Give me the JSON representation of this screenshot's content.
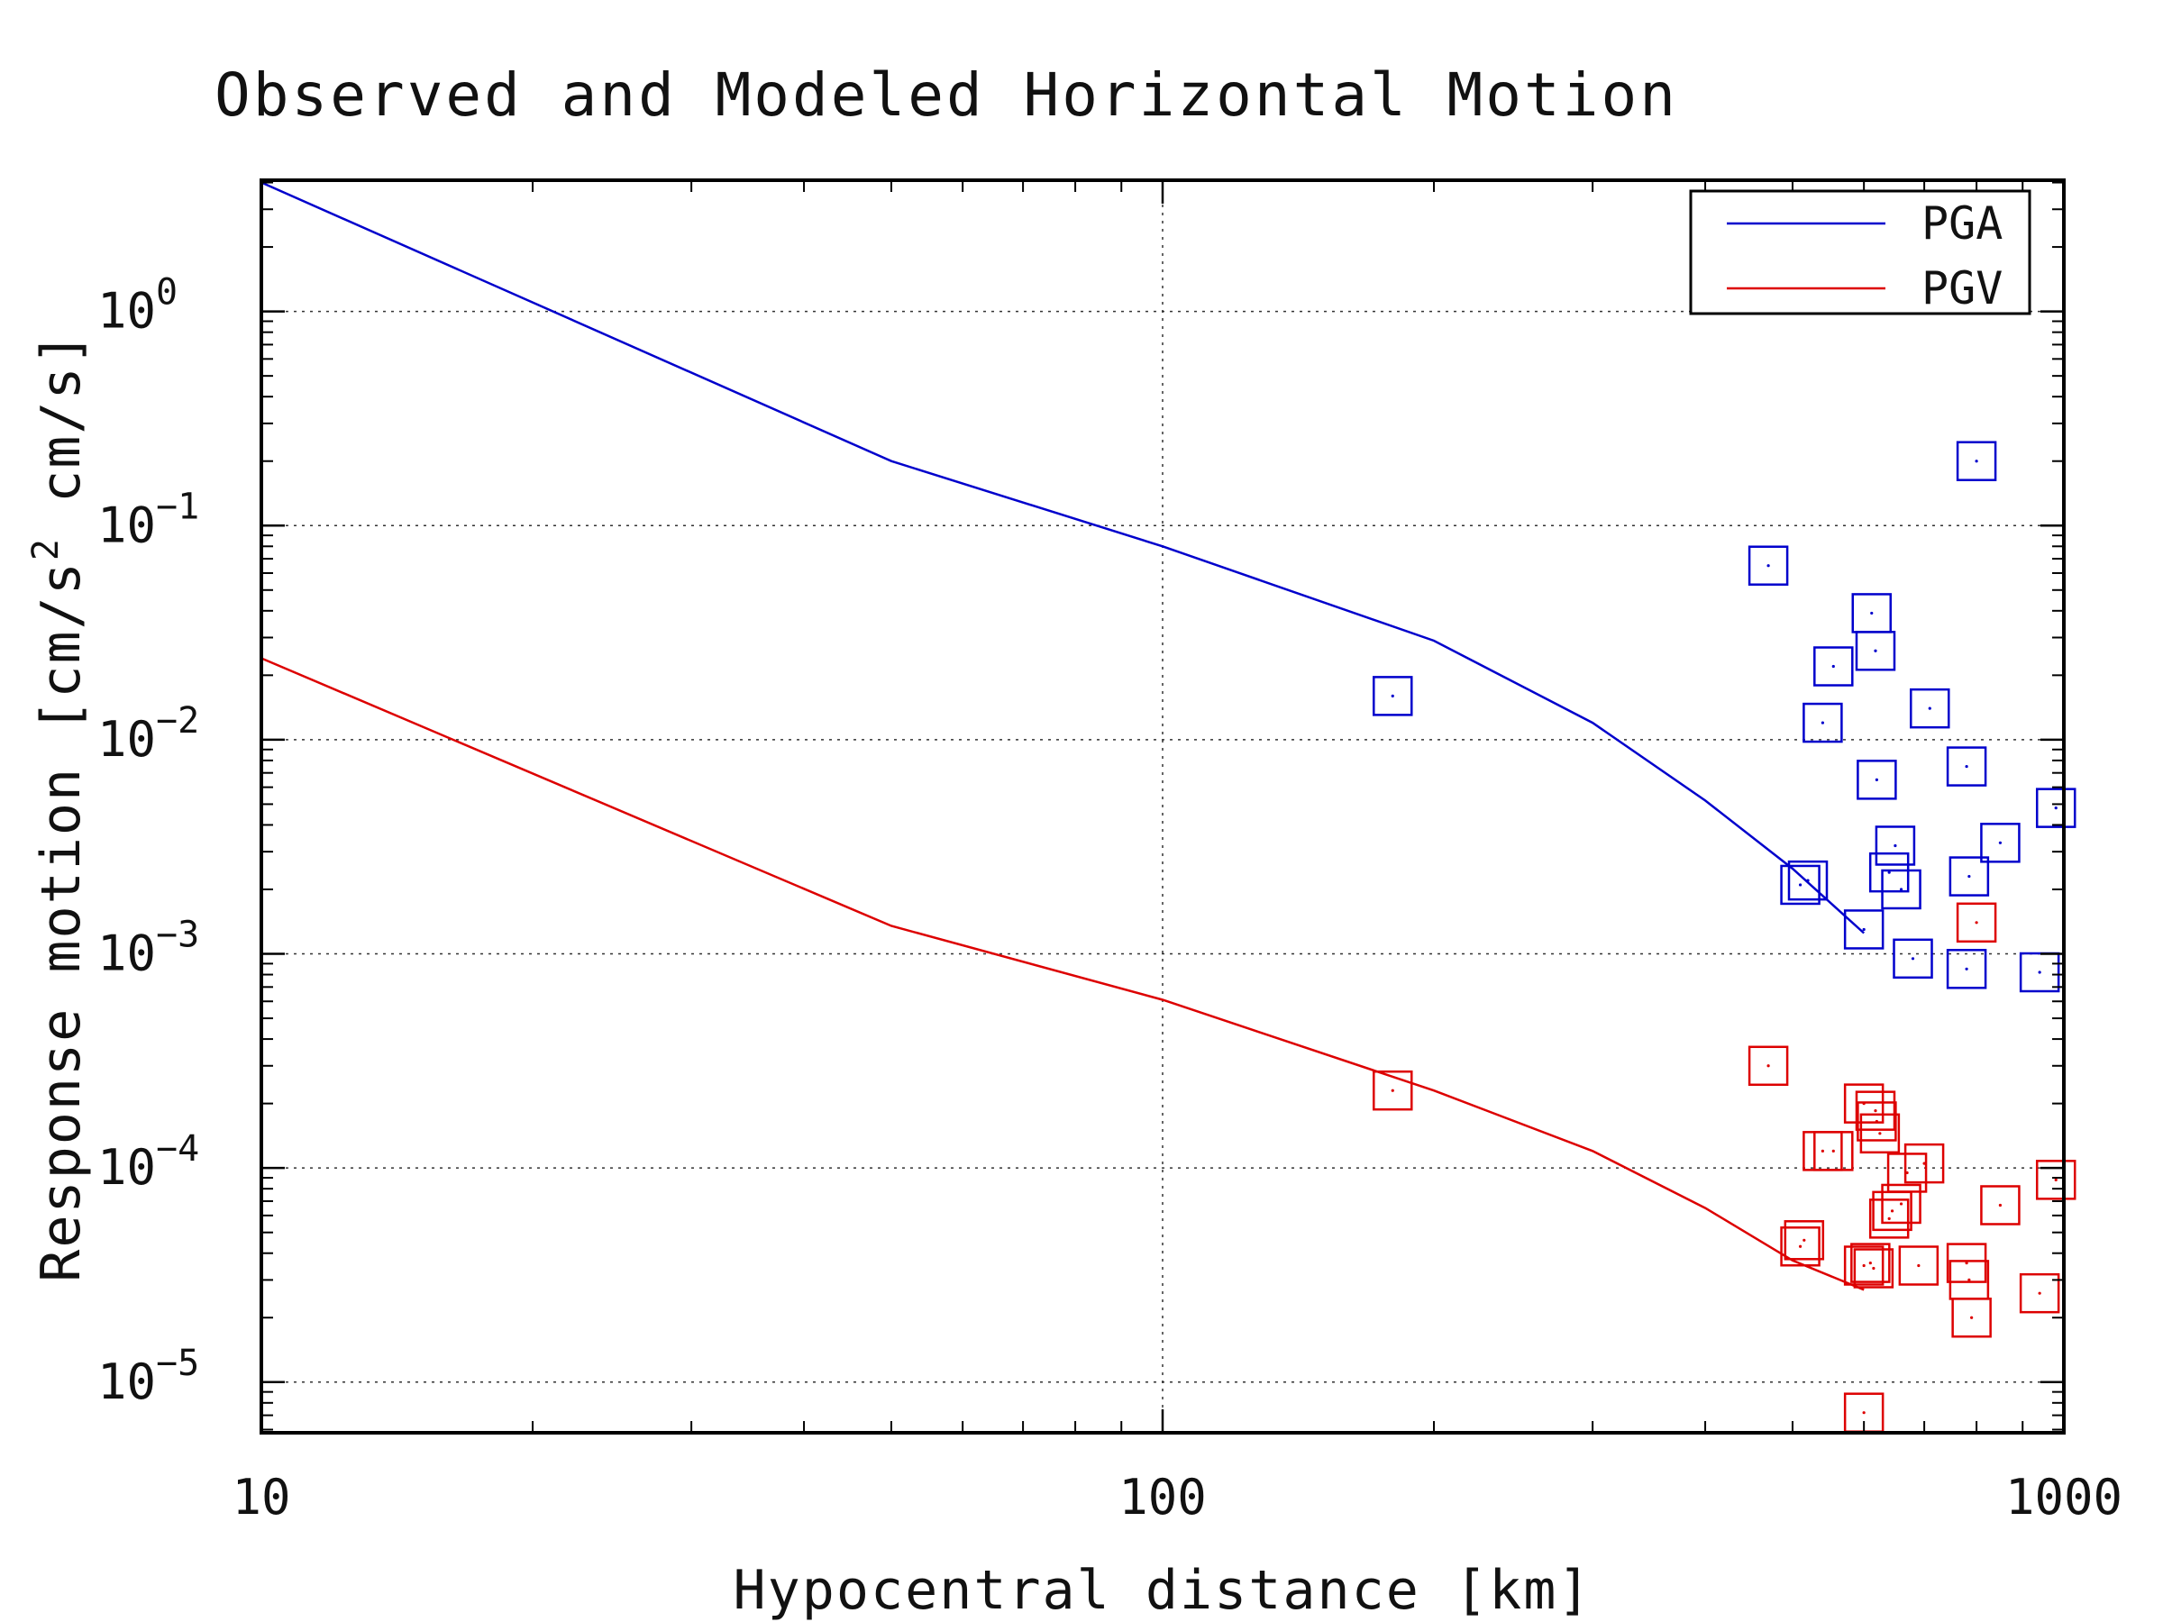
{
  "chart_data": {
    "type": "scatter",
    "title": "Observed and Modeled Horizontal Motion",
    "xlabel": "Hypocentral distance [km]",
    "ylabel": "Response motion [cm/s",
    "ylabel_sup": "2",
    "ylabel_end": " cm/s]",
    "xscale": "log",
    "yscale": "log",
    "xlim": [
      10,
      1000
    ],
    "ylim": [
      5.8e-06,
      4.1
    ],
    "x_ticks": [
      {
        "value": 10,
        "label": "10"
      },
      {
        "value": 100,
        "label": "100"
      },
      {
        "value": 1000,
        "label": "1000"
      }
    ],
    "y_ticks": [
      {
        "value": 1,
        "base": "10",
        "exp": "0"
      },
      {
        "value": 0.1,
        "base": "10",
        "exp": "−1"
      },
      {
        "value": 0.01,
        "base": "10",
        "exp": "−2"
      },
      {
        "value": 0.001,
        "base": "10",
        "exp": "−3"
      },
      {
        "value": 0.0001,
        "base": "10",
        "exp": "−4"
      },
      {
        "value": 1e-05,
        "base": "10",
        "exp": "−5"
      }
    ],
    "grid": true,
    "legend_position": "top-right",
    "series": [
      {
        "name": "PGA",
        "color": "#0000cc",
        "line": [
          [
            10,
            4.0
          ],
          [
            50,
            0.2
          ],
          [
            100,
            0.08
          ],
          [
            200,
            0.029
          ],
          [
            300,
            0.012
          ],
          [
            400,
            0.0052
          ],
          [
            500,
            0.0025
          ],
          [
            600,
            0.00125
          ]
        ],
        "points": [
          [
            180,
            0.016
          ],
          [
            470,
            0.065
          ],
          [
            510,
            0.0021
          ],
          [
            520,
            0.0022
          ],
          [
            540,
            0.012
          ],
          [
            555,
            0.022
          ],
          [
            600,
            0.0013
          ],
          [
            612,
            0.039
          ],
          [
            618,
            0.026
          ],
          [
            620,
            0.0065
          ],
          [
            650,
            0.0032
          ],
          [
            640,
            0.0024
          ],
          [
            660,
            0.002
          ],
          [
            680,
            0.00095
          ],
          [
            710,
            0.014
          ],
          [
            780,
            0.0075
          ],
          [
            780,
            0.00085
          ],
          [
            785,
            0.0023
          ],
          [
            800,
            0.2
          ],
          [
            850,
            0.0033
          ],
          [
            940,
            0.00082
          ],
          [
            980,
            0.0048
          ]
        ]
      },
      {
        "name": "PGV",
        "color": "#dd0000",
        "line": [
          [
            10,
            0.024
          ],
          [
            50,
            0.00135
          ],
          [
            100,
            0.00061
          ],
          [
            200,
            0.00023
          ],
          [
            300,
            0.00012
          ],
          [
            400,
            6.5e-05
          ],
          [
            500,
            3.7e-05
          ],
          [
            600,
            2.7e-05
          ]
        ],
        "points": [
          [
            180,
            0.00023
          ],
          [
            470,
            0.0003
          ],
          [
            510,
            4.3e-05
          ],
          [
            515,
            4.6e-05
          ],
          [
            540,
            0.00012
          ],
          [
            555,
            0.00012
          ],
          [
            600,
            7.2e-06
          ],
          [
            600,
            3.5e-05
          ],
          [
            600,
            0.0002
          ],
          [
            610,
            3.6e-05
          ],
          [
            615,
            3.4e-05
          ],
          [
            618,
            0.000185
          ],
          [
            620,
            0.000165
          ],
          [
            625,
            0.000145
          ],
          [
            640,
            5.8e-05
          ],
          [
            645,
            6.3e-05
          ],
          [
            660,
            6.8e-05
          ],
          [
            670,
            9.5e-05
          ],
          [
            690,
            3.5e-05
          ],
          [
            700,
            0.000105
          ],
          [
            780,
            3.6e-05
          ],
          [
            785,
            3e-05
          ],
          [
            790,
            2e-05
          ],
          [
            800,
            0.0014
          ],
          [
            850,
            6.7e-05
          ],
          [
            940,
            2.6e-05
          ],
          [
            980,
            8.8e-05
          ]
        ]
      }
    ]
  }
}
